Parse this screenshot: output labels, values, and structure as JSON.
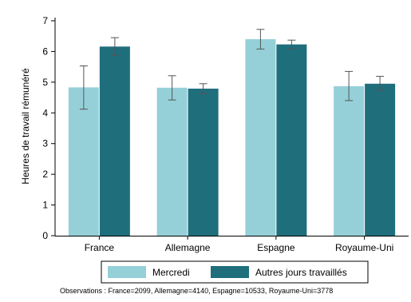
{
  "chart_data": {
    "type": "bar",
    "ylabel": "Heures de travail rémunéré",
    "xlabel": "",
    "ylim": [
      0,
      7
    ],
    "yticks": [
      0,
      1,
      2,
      3,
      4,
      5,
      6,
      7
    ],
    "grid": false,
    "legend_position": "bottom",
    "categories": [
      "France",
      "Allemagne",
      "Espagne",
      "Royaume-Uni"
    ],
    "series": [
      {
        "name": "Mercredi",
        "color": "#95d0d8",
        "values": [
          4.83,
          4.82,
          6.4,
          4.87
        ],
        "ci_low": [
          4.12,
          4.42,
          6.08,
          4.4
        ],
        "ci_high": [
          5.53,
          5.21,
          6.72,
          5.35
        ]
      },
      {
        "name": "Autres jours travaillés",
        "color": "#1f6e7c",
        "values": [
          6.16,
          4.79,
          6.23,
          4.95
        ],
        "ci_low": [
          5.87,
          4.63,
          6.09,
          4.73
        ],
        "ci_high": [
          6.45,
          4.95,
          6.37,
          5.19
        ]
      }
    ],
    "note": "Observations : France=2099, Allemagne=4140, Espagne=10533, Royaume-Uni=3778"
  }
}
